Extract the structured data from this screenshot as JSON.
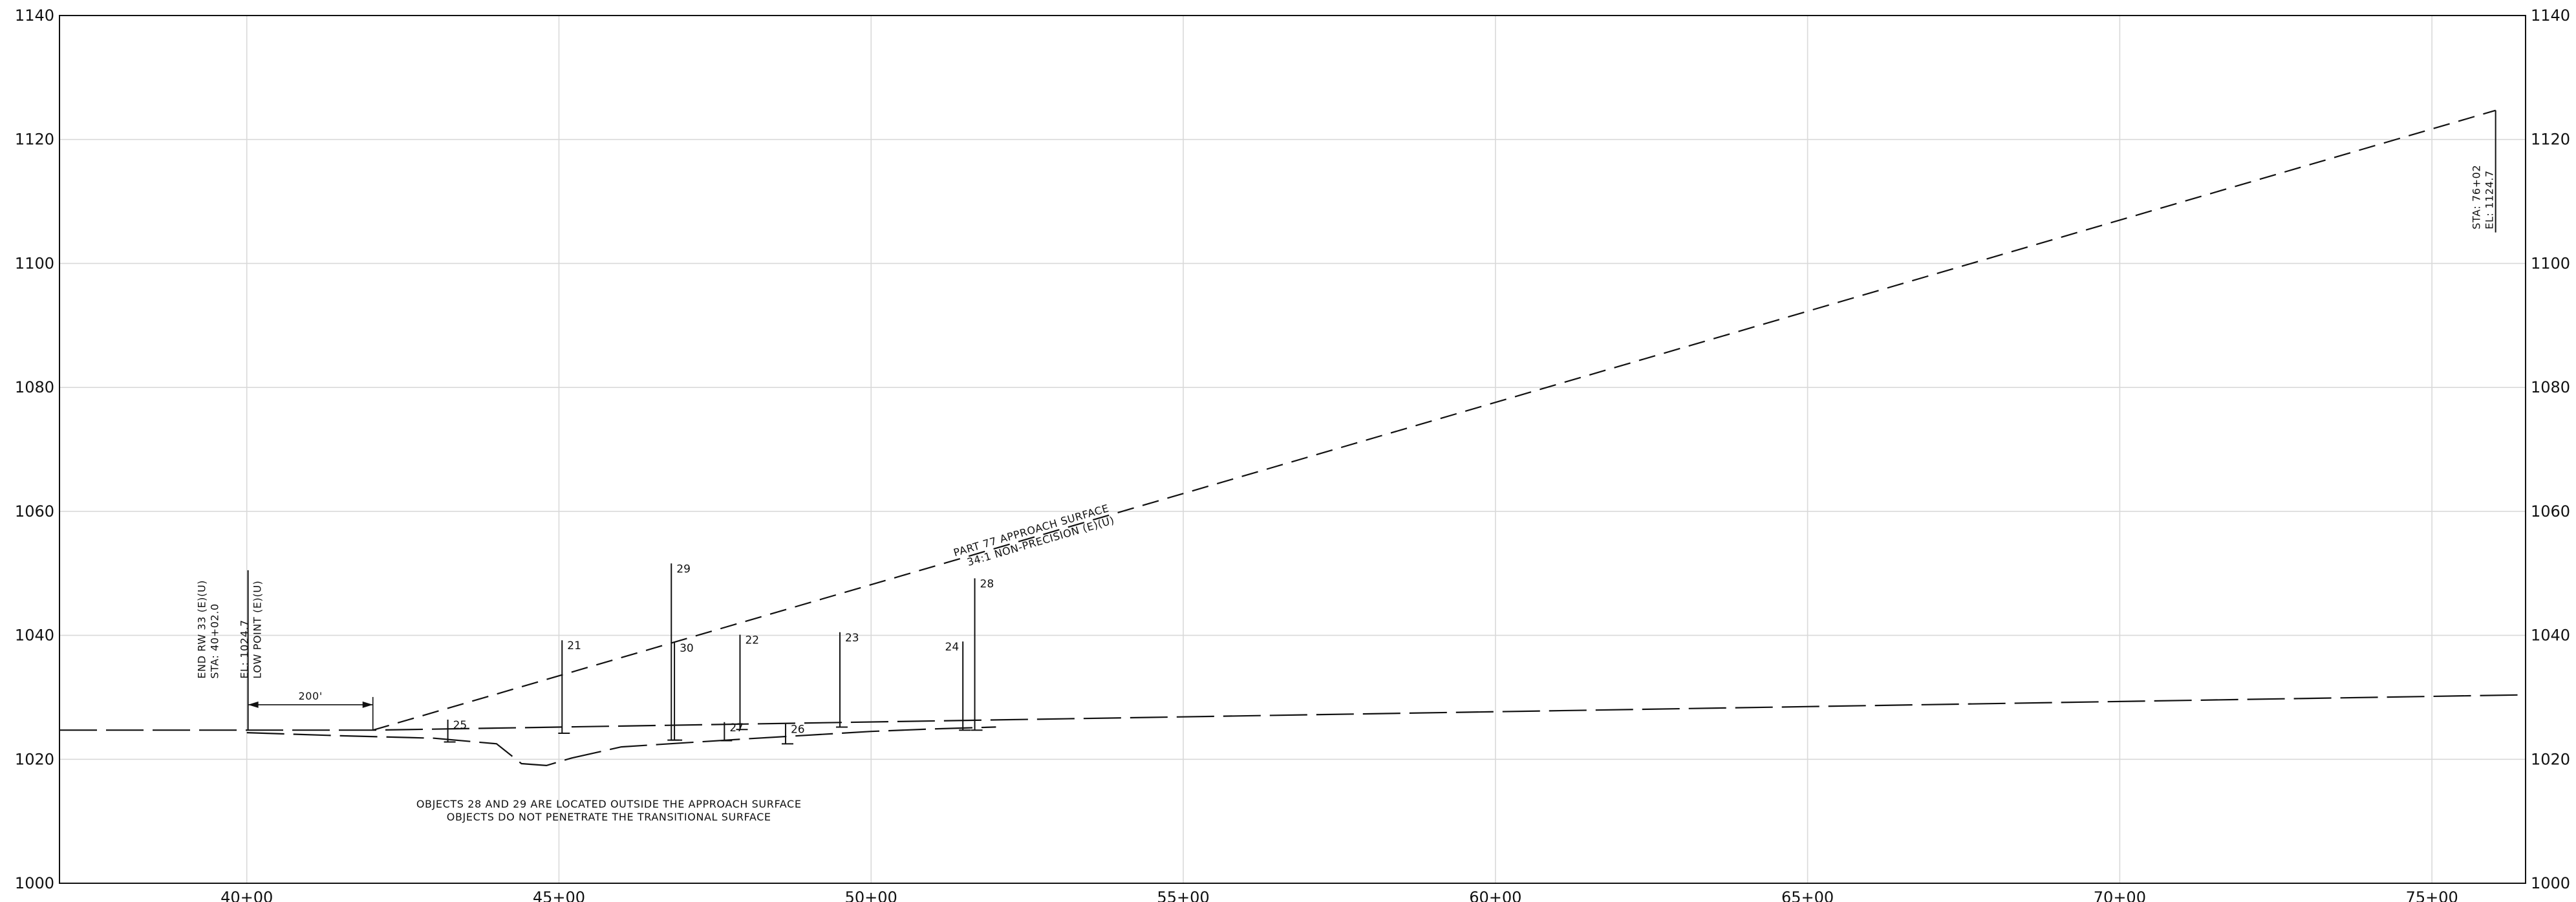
{
  "colors": {
    "background": "#ffffff",
    "grid": "#d9d9d9",
    "ink": "#111111"
  },
  "chart_data": {
    "type": "line",
    "title": "",
    "xlabel": "",
    "ylabel": "",
    "xlim": [
      3700,
      7650
    ],
    "ylim": [
      1000,
      1140
    ],
    "grid": true,
    "x_ticks": [
      {
        "value": 4000,
        "label": "40+00"
      },
      {
        "value": 4500,
        "label": "45+00"
      },
      {
        "value": 5000,
        "label": "50+00"
      },
      {
        "value": 5500,
        "label": "55+00"
      },
      {
        "value": 6000,
        "label": "60+00"
      },
      {
        "value": 6500,
        "label": "65+00"
      },
      {
        "value": 7000,
        "label": "70+00"
      },
      {
        "value": 7500,
        "label": "75+00"
      }
    ],
    "y_ticks": [
      {
        "value": 1000,
        "label": "1000"
      },
      {
        "value": 1020,
        "label": "1020"
      },
      {
        "value": 1040,
        "label": "1040"
      },
      {
        "value": 1060,
        "label": "1060"
      },
      {
        "value": 1080,
        "label": "1080"
      },
      {
        "value": 1100,
        "label": "1100"
      },
      {
        "value": 1120,
        "label": "1120"
      },
      {
        "value": 1140,
        "label": "1140"
      }
    ],
    "series": [
      {
        "key": "approach_surface",
        "style": "dashed",
        "x": [
          4202,
          7602
        ],
        "y": [
          1024.7,
          1124.7
        ]
      },
      {
        "key": "extended_line",
        "style": "long-dash",
        "x": [
          3700,
          4202,
          7650
        ],
        "y": [
          1024.7,
          1024.7,
          1030.4
        ]
      },
      {
        "key": "ground_profile",
        "style": "long-dash",
        "x": [
          4000,
          4150,
          4300,
          4400,
          4440,
          4480,
          4520,
          4600,
          4800,
          5000,
          5100,
          5200
        ],
        "y": [
          1024.3,
          1023.8,
          1023.4,
          1022.5,
          1019.3,
          1019.0,
          1020.2,
          1022.0,
          1023.3,
          1024.5,
          1024.9,
          1025.2
        ]
      }
    ],
    "objects": [
      {
        "label": "21",
        "x": 4505,
        "y_base": 1024.2,
        "y_top": 1039.2
      },
      {
        "label": "22",
        "x": 4790,
        "y_base": 1024.8,
        "y_top": 1040.1
      },
      {
        "label": "23",
        "x": 4950,
        "y_base": 1025.2,
        "y_top": 1040.5
      },
      {
        "label": "24",
        "x": 5147,
        "y_base": 1024.7,
        "y_top": 1039.0
      },
      {
        "label": "25",
        "x": 4322,
        "y_base": 1022.8,
        "y_top": 1026.4
      },
      {
        "label": "26",
        "x": 4863,
        "y_base": 1022.5,
        "y_top": 1025.7
      },
      {
        "label": "27",
        "x": 4765,
        "y_base": 1023.0,
        "y_top": 1026.0
      },
      {
        "label": "28",
        "x": 5166,
        "y_base": 1024.7,
        "y_top": 1049.2
      },
      {
        "label": "29",
        "x": 4680,
        "y_base": 1023.1,
        "y_top": 1051.6
      },
      {
        "label": "30",
        "x": 4685,
        "y_base": 1023.1,
        "y_top": 1038.8
      }
    ],
    "annotations": {
      "end_runway": [
        "END RW 33 (E)(U)",
        "STA: 40+02.0",
        "EL: 1024.7",
        "LOW POINT (E)(U)"
      ],
      "end_station": [
        "STA: 76+02",
        "EL: 1124.7"
      ],
      "approach_label": [
        "PART 77 APPROACH SURFACE",
        "34:1 NON-PRECISION (E)(U)"
      ],
      "dimension": "200'",
      "notes": [
        "OBJECTS 28 AND 29 ARE LOCATED OUTSIDE THE APPROACH SURFACE",
        "OBJECTS DO NOT PENETRATE THE TRANSITIONAL SURFACE"
      ]
    }
  }
}
